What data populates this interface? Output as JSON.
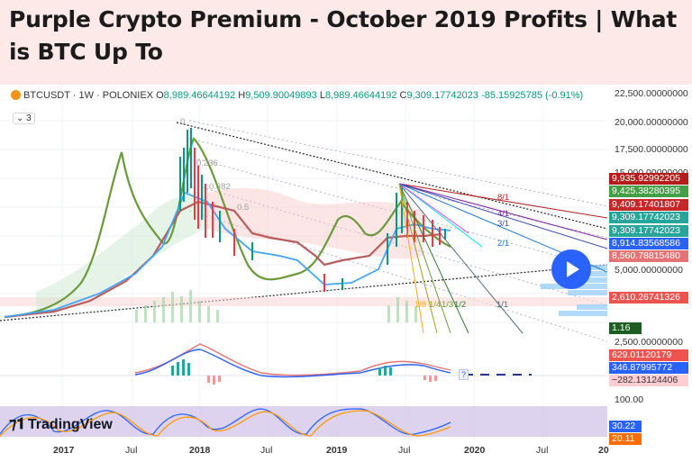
{
  "headline": "Purple Crypto Premium - October 2019 Profits | What is BTC Up To",
  "legend": {
    "symbol": "BTCUSDT · 1W · POLONIEX",
    "open_label": "O",
    "open": "8,989.46644192",
    "high_label": "H",
    "high": "9,509.90049893",
    "low_label": "L",
    "low": "8,989.46644192",
    "close_label": "C",
    "close": "9,309.17742023",
    "change": "-85.15925785 (-0.91%)",
    "indicators_count": "3"
  },
  "price_axis": {
    "ticks": [
      "22,500.00000000",
      "20,000.00000000",
      "17,500.00000000",
      "15,000.00000000",
      "5,000.00000000",
      "2,500.00000000",
      "100.00"
    ],
    "badges": [
      {
        "text": "9,935.92992205",
        "color": "#b71c1c"
      },
      {
        "text": "9,425.38280395",
        "color": "#43a047"
      },
      {
        "text": "9,409.17401807",
        "color": "#c62828"
      },
      {
        "text": "9,309.17742023",
        "color": "#26a69a"
      },
      {
        "text": "9,309.17742023",
        "color": "#26a69a"
      },
      {
        "text": "8,914.83568586",
        "color": "#2962ff"
      },
      {
        "text": "8,560.78815480",
        "color": "#e57373"
      },
      {
        "text": "2,610.26741326",
        "color": "#ef5350"
      },
      {
        "text": "1.16 K",
        "color": "#1b5e20"
      },
      {
        "text": "629.01120179",
        "color": "#ef5350"
      },
      {
        "text": "346.87995772",
        "color": "#2962ff"
      },
      {
        "text": "−282.13124406",
        "color": "#ffcdd2"
      },
      {
        "text": "30.22",
        "color": "#2962ff"
      },
      {
        "text": "20.11",
        "color": "#ff6d00"
      }
    ]
  },
  "time_axis": {
    "labels": [
      "2017",
      "Jul",
      "2018",
      "Jul",
      "2019",
      "Jul",
      "2020",
      "Jul",
      "20"
    ]
  },
  "fan_labels": [
    "8/1",
    "4/1",
    "3/1",
    "2/1",
    "1/8",
    "1/4",
    "1/3",
    "1/2",
    "1/1"
  ],
  "fib_labels": [
    "0",
    "0.236",
    "0.382",
    "0.5"
  ],
  "watermark": "TradingView",
  "colors": {
    "accent": "#2962ff",
    "up": "#089981",
    "down": "#f23645",
    "background": "#fde9e8"
  }
}
